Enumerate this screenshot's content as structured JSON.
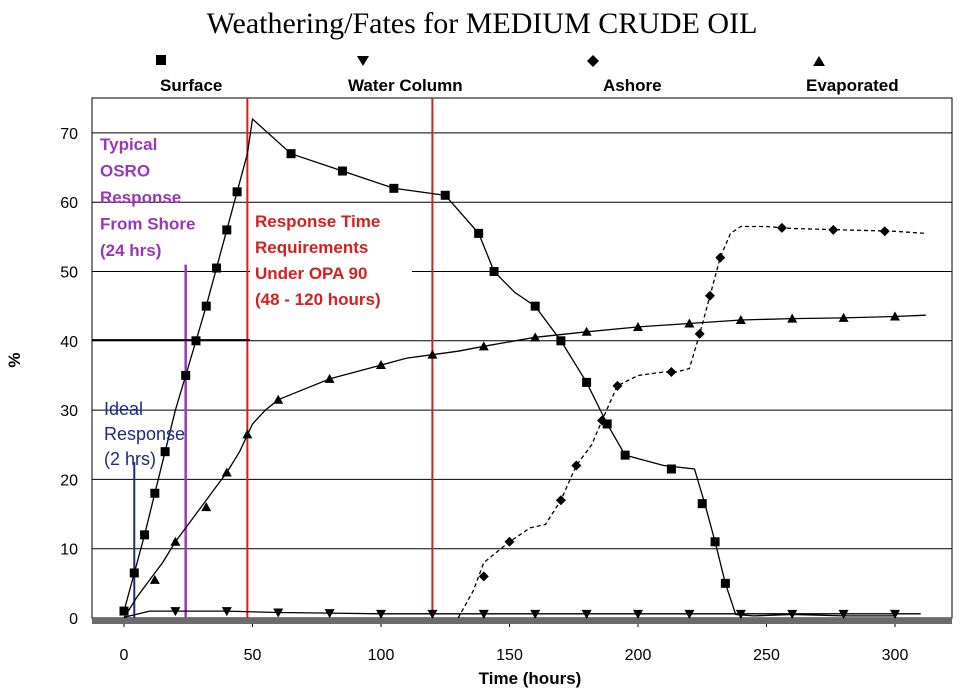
{
  "chart_data": {
    "type": "line",
    "title": "Weathering/Fates for MEDIUM CRUDE OIL",
    "xlabel": "Time (hours)",
    "ylabel": "%",
    "xlim": [
      -12,
      320
    ],
    "ylim": [
      0,
      75
    ],
    "x_ticks": [
      0,
      50,
      100,
      150,
      200,
      250,
      300
    ],
    "y_ticks": [
      0,
      10,
      20,
      30,
      40,
      50,
      60,
      70
    ],
    "grid": "horizontal",
    "legend_position": "top",
    "series": [
      {
        "name": "Surface",
        "marker": "square",
        "line": "solid",
        "color": "#000000",
        "x": [
          0,
          4,
          8,
          12,
          16,
          20,
          24,
          28,
          32,
          36,
          40,
          44,
          48,
          50,
          65,
          85,
          105,
          125,
          138,
          144,
          152,
          160,
          170,
          180,
          188,
          195,
          210,
          222,
          226,
          230,
          234,
          238,
          245,
          260,
          280,
          300
        ],
        "values": [
          1,
          6.5,
          12,
          18,
          24,
          30,
          35,
          40,
          45,
          50.5,
          56,
          61.5,
          67,
          72,
          67,
          64.5,
          62,
          61,
          55.5,
          50,
          47,
          45,
          40,
          34,
          28,
          23.5,
          22,
          21.5,
          16.5,
          11,
          5,
          0.5,
          0.3,
          0.5,
          0.3,
          0.3
        ],
        "marked_x": [
          0,
          4,
          8,
          12,
          16,
          24,
          28,
          32,
          36,
          40,
          44,
          65,
          85,
          105,
          125,
          138,
          144,
          160,
          170,
          180,
          188,
          195,
          213,
          225,
          230,
          234
        ],
        "marked_values": [
          1,
          6.5,
          12,
          18,
          24,
          35,
          40,
          45,
          50.5,
          56,
          61.5,
          67,
          64.5,
          62,
          61,
          55.5,
          50,
          45,
          40,
          34,
          28,
          23.5,
          21.5,
          16.5,
          11,
          5
        ]
      },
      {
        "name": "Water Column",
        "marker": "triangle-down",
        "line": "solid",
        "color": "#000000",
        "x": [
          0,
          10,
          20,
          40,
          60,
          80,
          100,
          120,
          140,
          160,
          180,
          200,
          220,
          240,
          260,
          280,
          300,
          310
        ],
        "values": [
          0.1,
          1,
          1,
          1,
          0.8,
          0.7,
          0.6,
          0.6,
          0.6,
          0.6,
          0.6,
          0.6,
          0.6,
          0.6,
          0.6,
          0.6,
          0.6,
          0.6
        ],
        "marked_x": [
          20,
          40,
          60,
          80,
          100,
          120,
          140,
          160,
          180,
          200,
          220,
          240,
          260,
          280,
          300
        ],
        "marked_values": [
          1,
          1,
          0.8,
          0.7,
          0.6,
          0.6,
          0.6,
          0.6,
          0.6,
          0.6,
          0.6,
          0.6,
          0.6,
          0.6,
          0.6
        ]
      },
      {
        "name": "Ashore",
        "marker": "diamond",
        "line": "dashed",
        "color": "#000000",
        "x": [
          130,
          136,
          140,
          145,
          150,
          158,
          164,
          170,
          176,
          182,
          186,
          192,
          200,
          210,
          215,
          220,
          224,
          228,
          232,
          236,
          240,
          250,
          260,
          280,
          300,
          312
        ],
        "values": [
          0,
          4,
          8,
          9.5,
          11,
          13,
          13.5,
          17,
          22,
          25,
          28.5,
          33.5,
          35,
          35.5,
          35.5,
          36,
          41,
          46.5,
          52,
          55.5,
          56.5,
          56.5,
          56.2,
          56,
          55.8,
          55.5
        ],
        "marked_x": [
          140,
          150,
          170,
          176,
          186,
          192,
          213,
          224,
          228,
          232,
          256,
          276,
          296
        ],
        "marked_values": [
          6,
          11,
          17,
          22,
          28.5,
          33.5,
          35.5,
          41,
          46.5,
          52,
          56.3,
          56,
          55.8
        ]
      },
      {
        "name": "Evaporated",
        "marker": "triangle-up",
        "line": "solid",
        "color": "#000000",
        "x": [
          0,
          5,
          10,
          15,
          20,
          25,
          30,
          35,
          40,
          45,
          50,
          55,
          60,
          70,
          80,
          90,
          100,
          110,
          120,
          130,
          140,
          160,
          180,
          200,
          220,
          240,
          260,
          280,
          300,
          312
        ],
        "values": [
          0,
          3,
          5.5,
          8,
          11,
          13.5,
          16,
          18.5,
          21,
          24,
          28,
          30,
          31.5,
          33,
          34.5,
          35.5,
          36.5,
          37.5,
          38,
          38.5,
          39.2,
          40.5,
          41.3,
          42,
          42.5,
          43,
          43.2,
          43.3,
          43.5,
          43.7
        ],
        "marked_x": [
          12,
          20,
          32,
          40,
          48,
          60,
          80,
          100,
          120,
          140,
          160,
          180,
          200,
          220,
          240,
          260,
          280,
          300
        ],
        "marked_values": [
          5.5,
          11,
          16,
          21,
          26.5,
          31.5,
          34.5,
          36.5,
          38,
          39.2,
          40.5,
          41.3,
          42,
          42.5,
          43,
          43.2,
          43.3,
          43.5
        ]
      }
    ],
    "annotations": [
      {
        "text": [
          "Typical",
          "OSRO",
          "Response",
          "From Shore",
          "(24 hrs)"
        ],
        "x_line": 24,
        "color": "#9b36b8"
      },
      {
        "text": [
          "Response Time",
          "Requirements",
          "Under OPA 90",
          "(48 - 120 hours)"
        ],
        "x_lines": [
          48,
          120
        ],
        "color": "#d61f1f"
      },
      {
        "text": [
          "Ideal",
          "Response",
          "(2 hrs)"
        ],
        "x_line": 4,
        "color": "#1c2a8a"
      }
    ]
  }
}
